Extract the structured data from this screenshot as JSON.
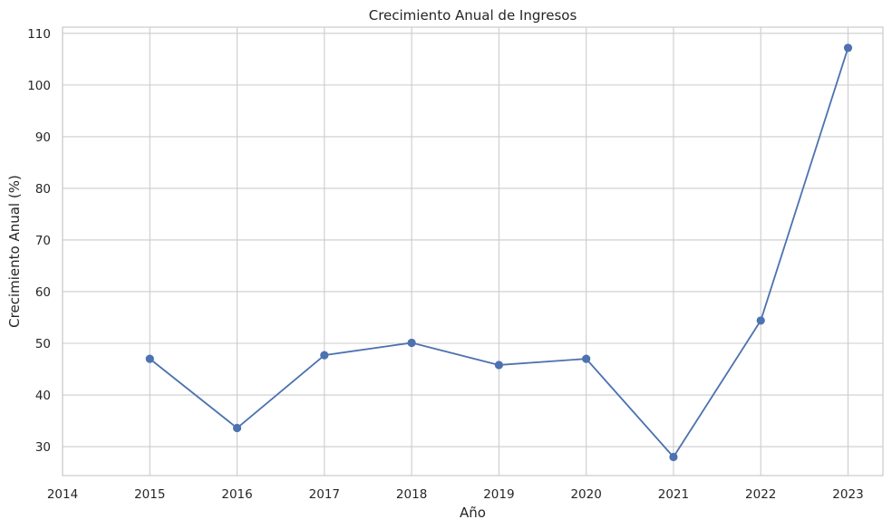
{
  "chart_data": {
    "type": "line",
    "title": "Crecimiento Anual de Ingresos",
    "xlabel": "Año",
    "ylabel": "Crecimiento Anual (%)",
    "x": [
      2015,
      2016,
      2017,
      2018,
      2019,
      2020,
      2021,
      2022,
      2023
    ],
    "series": [
      {
        "values": [
          47.0,
          33.6,
          47.7,
          50.1,
          45.8,
          47.0,
          28.0,
          54.4,
          107.2
        ]
      }
    ],
    "xlim": [
      2014,
      2023.4
    ],
    "ylim": [
      24.4,
      111.2
    ],
    "x_ticks": [
      "2014",
      "2015",
      "2016",
      "2017",
      "2018",
      "2019",
      "2020",
      "2021",
      "2022",
      "2023"
    ],
    "y_ticks": [
      "30",
      "40",
      "50",
      "60",
      "70",
      "80",
      "90",
      "100",
      "110"
    ],
    "grid": true,
    "colors": {
      "line": "#4c72b0",
      "grid": "#cccccc",
      "spine": "#cccccc",
      "text": "#262626"
    }
  }
}
